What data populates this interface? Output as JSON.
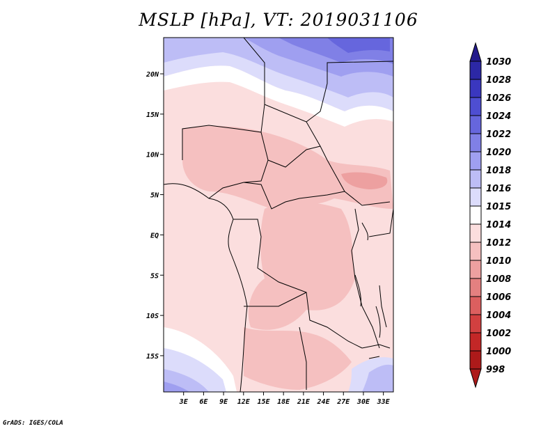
{
  "title": "MSLP [hPa], VT: 2019031106",
  "credit": "GrADS: IGES/COLA",
  "map": {
    "lat_range": [
      -19.5,
      24.5
    ],
    "lon_range": [
      0,
      34.5
    ],
    "lat_ticks": [
      {
        "value": 20,
        "label": "20N"
      },
      {
        "value": 15,
        "label": "15N"
      },
      {
        "value": 10,
        "label": "10N"
      },
      {
        "value": 5,
        "label": "5N"
      },
      {
        "value": 0,
        "label": "EQ"
      },
      {
        "value": -5,
        "label": "5S"
      },
      {
        "value": -10,
        "label": "10S"
      },
      {
        "value": -15,
        "label": "15S"
      }
    ],
    "lon_ticks": [
      {
        "value": 3,
        "label": "3E"
      },
      {
        "value": 6,
        "label": "6E"
      },
      {
        "value": 9,
        "label": "9E"
      },
      {
        "value": 12,
        "label": "12E"
      },
      {
        "value": 15,
        "label": "15E"
      },
      {
        "value": 18,
        "label": "18E"
      },
      {
        "value": 21,
        "label": "21E"
      },
      {
        "value": 24,
        "label": "24E"
      },
      {
        "value": 27,
        "label": "27E"
      },
      {
        "value": 30,
        "label": "30E"
      },
      {
        "value": 33,
        "label": "33E"
      }
    ]
  },
  "colorbar": {
    "levels": [
      {
        "label": "1030",
        "color": "#231a8c"
      },
      {
        "label": "1028",
        "color": "#2c28a6"
      },
      {
        "label": "1026",
        "color": "#3a37bf"
      },
      {
        "label": "1024",
        "color": "#4e4ed2"
      },
      {
        "label": "1022",
        "color": "#6666dd"
      },
      {
        "label": "1020",
        "color": "#8080e6"
      },
      {
        "label": "1018",
        "color": "#9f9ff0"
      },
      {
        "label": "1016",
        "color": "#bdbdf6"
      },
      {
        "label": "1015",
        "color": "#dcdcfb"
      },
      {
        "label": "1014",
        "color": "#ffffff"
      },
      {
        "label": "1012",
        "color": "#fbdede"
      },
      {
        "label": "1010",
        "color": "#f5c0c0"
      },
      {
        "label": "1008",
        "color": "#eda0a0"
      },
      {
        "label": "1006",
        "color": "#e48080"
      },
      {
        "label": "1004",
        "color": "#dc5f5f"
      },
      {
        "label": "1002",
        "color": "#d24040"
      },
      {
        "label": "1000",
        "color": "#c32727"
      },
      {
        "label": "998",
        "color": "#ad1a1a"
      }
    ]
  }
}
